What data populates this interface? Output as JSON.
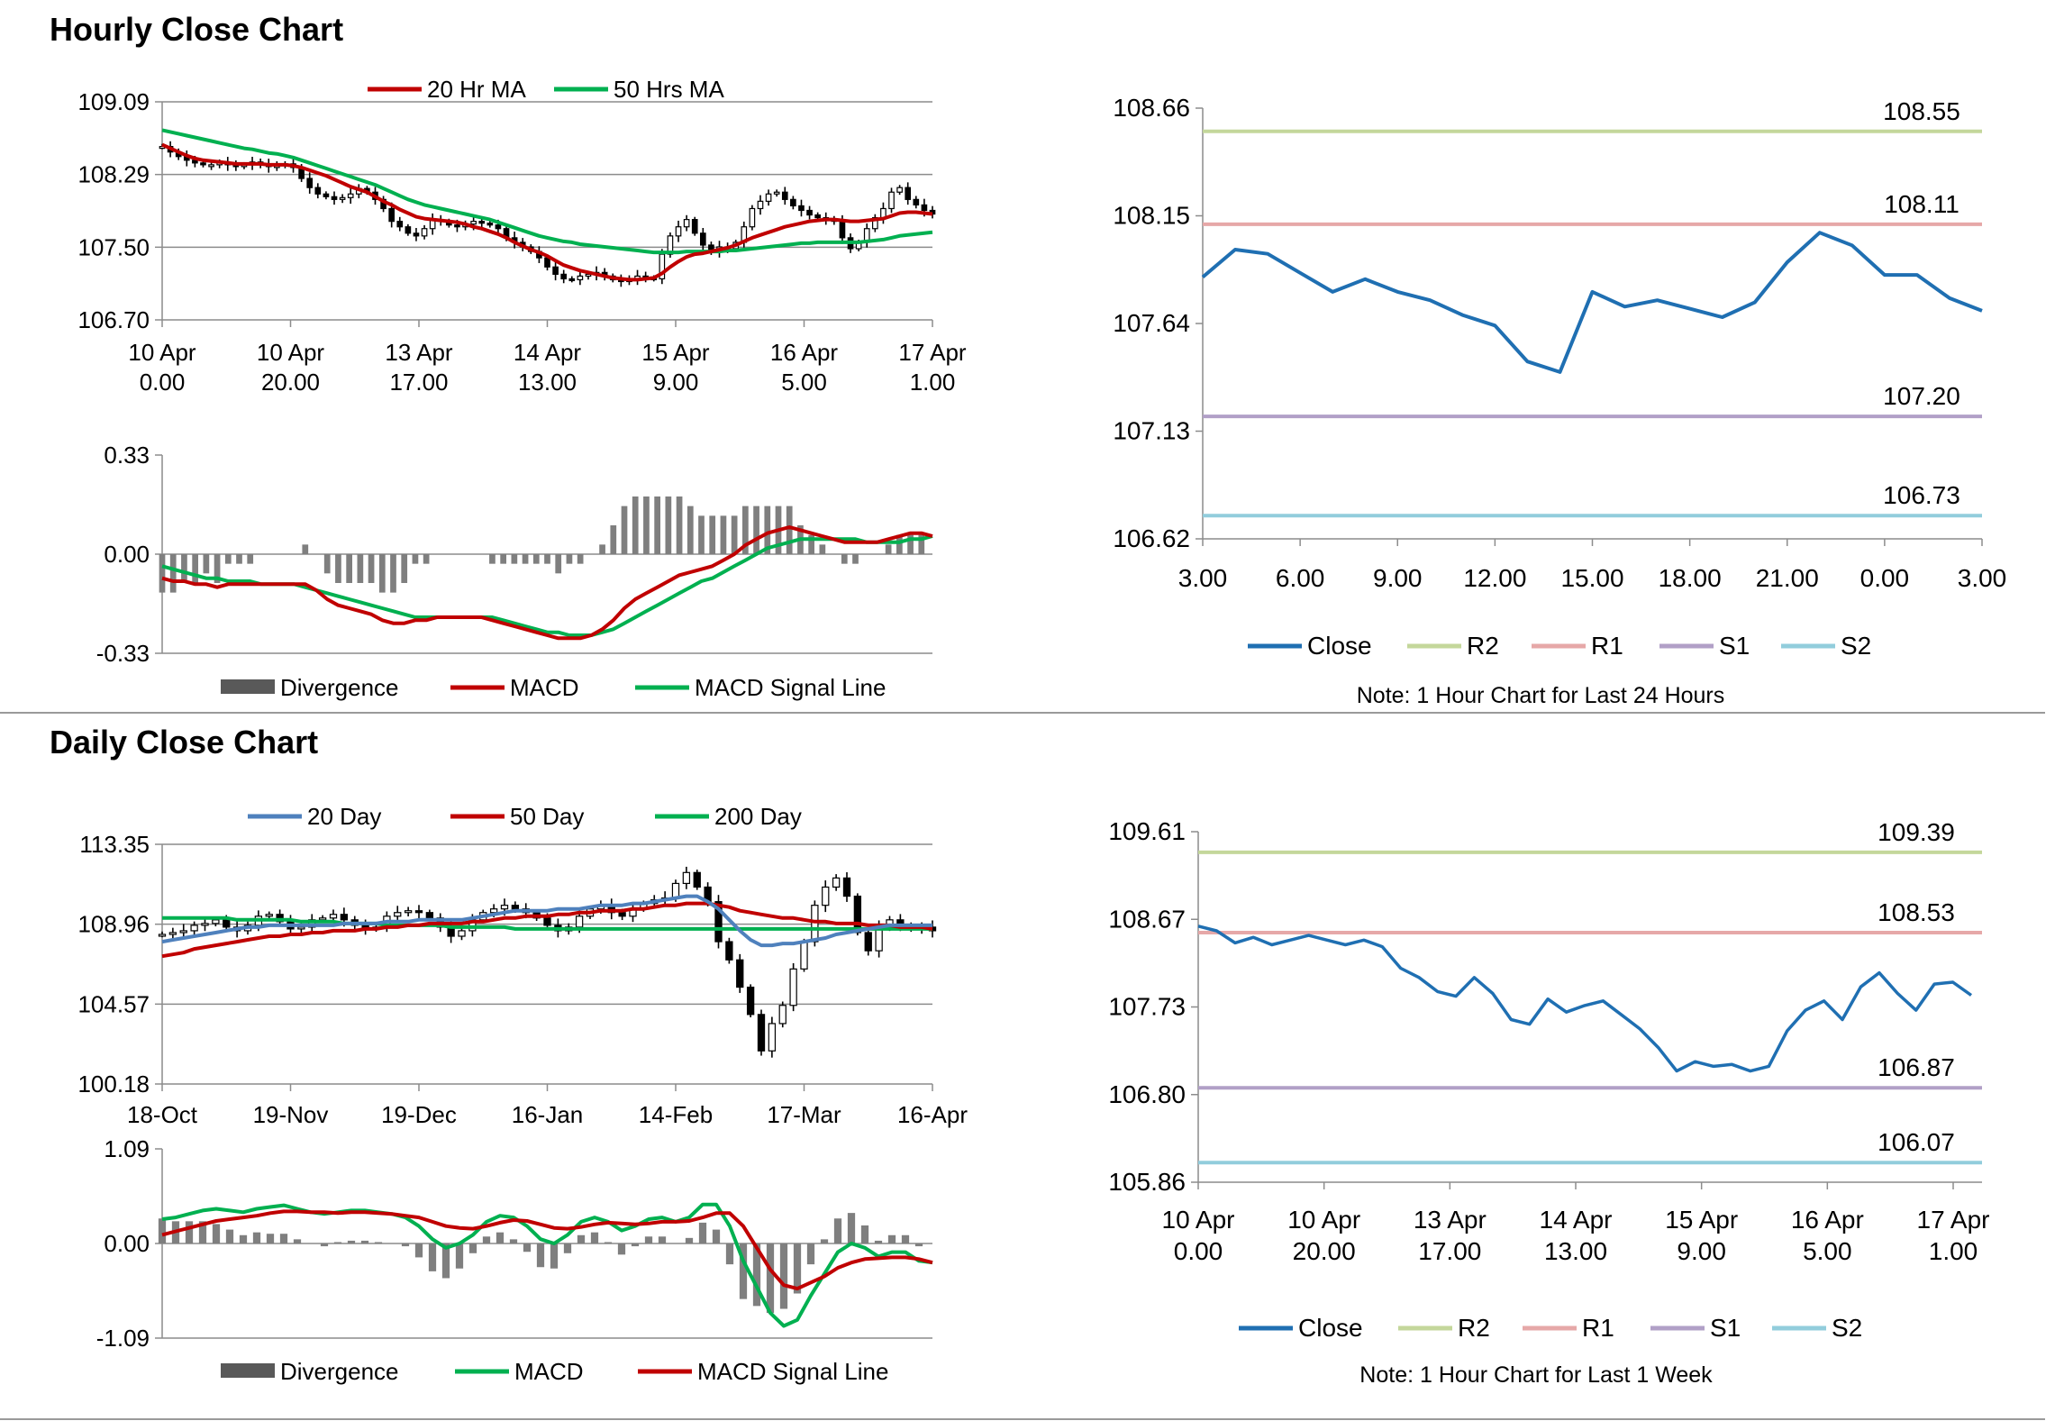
{
  "sections": {
    "hourly_title": "Hourly Close Chart",
    "daily_title": "Daily Close Chart"
  },
  "colors": {
    "ma20": "#c00000",
    "ma50": "#00b050",
    "blue": "#1f6fb2",
    "blue_ma": "#4f81bd",
    "r2": "#c4d79b",
    "r1": "#e6a8a8",
    "s1": "#b1a0c7",
    "s2": "#92cddc",
    "hist": "#7f7f7f",
    "grid": "#8c8c8c",
    "candle": "#000000"
  },
  "chart_data": [
    {
      "id": "hourly_price",
      "type": "candlestick",
      "legend": [
        "20 Hr MA",
        "50 Hrs MA"
      ],
      "y_ticks": [
        "109.09",
        "108.29",
        "107.50",
        "106.70"
      ],
      "ylim": [
        106.7,
        109.09
      ],
      "x_ticks": [
        [
          "10 Apr",
          "0.00"
        ],
        [
          "10 Apr",
          "20.00"
        ],
        [
          "13 Apr",
          "17.00"
        ],
        [
          "14 Apr",
          "13.00"
        ],
        [
          "15 Apr",
          "9.00"
        ],
        [
          "16 Apr",
          "5.00"
        ],
        [
          "17 Apr",
          "1.00"
        ]
      ],
      "close": [
        108.6,
        108.54,
        108.49,
        108.45,
        108.42,
        108.4,
        108.4,
        108.42,
        108.4,
        108.38,
        108.4,
        108.43,
        108.4,
        108.38,
        108.39,
        108.41,
        108.37,
        108.25,
        108.15,
        108.08,
        108.05,
        108.02,
        108.04,
        108.08,
        108.14,
        108.1,
        108.02,
        107.92,
        107.78,
        107.72,
        107.65,
        107.62,
        107.7,
        107.8,
        107.78,
        107.74,
        107.72,
        107.75,
        107.78,
        107.76,
        107.74,
        107.7,
        107.6,
        107.55,
        107.5,
        107.45,
        107.38,
        107.28,
        107.2,
        107.15,
        107.14,
        107.18,
        107.2,
        107.22,
        107.18,
        107.14,
        107.12,
        107.15,
        107.18,
        107.16,
        107.15,
        107.42,
        107.62,
        107.72,
        107.8,
        107.65,
        107.52,
        107.45,
        107.5,
        107.48,
        107.55,
        107.72,
        107.92,
        108.0,
        108.08,
        108.1,
        108.02,
        107.95,
        107.9,
        107.85,
        107.82,
        107.8,
        107.78,
        107.6,
        107.48,
        107.55,
        107.7,
        107.82,
        107.92,
        108.1,
        108.15,
        108.02,
        107.96,
        107.9,
        107.86
      ],
      "ma20": [
        108.62,
        108.58,
        108.54,
        108.5,
        108.47,
        108.45,
        108.44,
        108.43,
        108.42,
        108.41,
        108.41,
        108.41,
        108.41,
        108.4,
        108.4,
        108.4,
        108.39,
        108.37,
        108.34,
        108.31,
        108.28,
        108.24,
        108.2,
        108.16,
        108.13,
        108.1,
        108.05,
        108.0,
        107.96,
        107.91,
        107.87,
        107.83,
        107.81,
        107.8,
        107.79,
        107.78,
        107.77,
        107.75,
        107.72,
        107.7,
        107.67,
        107.64,
        107.6,
        107.55,
        107.51,
        107.47,
        107.44,
        107.4,
        107.35,
        107.3,
        107.27,
        107.24,
        107.22,
        107.2,
        107.18,
        107.16,
        107.15,
        107.14,
        107.14,
        107.15,
        107.16,
        107.21,
        107.28,
        107.34,
        107.39,
        107.42,
        107.43,
        107.45,
        107.47,
        107.49,
        107.52,
        107.56,
        107.6,
        107.63,
        107.66,
        107.69,
        107.72,
        107.74,
        107.76,
        107.78,
        107.79,
        107.8,
        107.8,
        107.79,
        107.78,
        107.78,
        107.79,
        107.8,
        107.81,
        107.84,
        107.87,
        107.88,
        107.88,
        107.87,
        107.86
      ],
      "ma50": [
        108.78,
        108.76,
        108.74,
        108.72,
        108.7,
        108.68,
        108.66,
        108.64,
        108.62,
        108.6,
        108.58,
        108.57,
        108.55,
        108.53,
        108.52,
        108.5,
        108.48,
        108.45,
        108.42,
        108.39,
        108.36,
        108.33,
        108.3,
        108.27,
        108.24,
        108.21,
        108.18,
        108.14,
        108.1,
        108.06,
        108.02,
        107.99,
        107.96,
        107.94,
        107.92,
        107.9,
        107.88,
        107.86,
        107.84,
        107.82,
        107.8,
        107.77,
        107.74,
        107.71,
        107.68,
        107.65,
        107.62,
        107.6,
        107.58,
        107.56,
        107.55,
        107.53,
        107.52,
        107.51,
        107.5,
        107.49,
        107.48,
        107.47,
        107.46,
        107.45,
        107.44,
        107.44,
        107.44,
        107.44,
        107.45,
        107.45,
        107.45,
        107.45,
        107.45,
        107.46,
        107.46,
        107.47,
        107.48,
        107.49,
        107.5,
        107.51,
        107.52,
        107.53,
        107.54,
        107.54,
        107.55,
        107.55,
        107.55,
        107.55,
        107.55,
        107.55,
        107.56,
        107.57,
        107.58,
        107.6,
        107.62,
        107.63,
        107.64,
        107.65,
        107.66
      ]
    },
    {
      "id": "hourly_macd",
      "type": "line+histogram",
      "legend": [
        "Divergence",
        "MACD",
        "MACD Signal Line"
      ],
      "y_ticks": [
        "0.33",
        "0.00",
        "-0.33"
      ],
      "ylim": [
        -0.33,
        0.33
      ],
      "macd": [
        -0.08,
        -0.09,
        -0.09,
        -0.1,
        -0.1,
        -0.11,
        -0.1,
        -0.1,
        -0.1,
        -0.1,
        -0.1,
        -0.1,
        -0.1,
        -0.1,
        -0.12,
        -0.15,
        -0.17,
        -0.18,
        -0.19,
        -0.2,
        -0.22,
        -0.23,
        -0.23,
        -0.22,
        -0.22,
        -0.21,
        -0.21,
        -0.21,
        -0.21,
        -0.21,
        -0.22,
        -0.23,
        -0.24,
        -0.25,
        -0.26,
        -0.27,
        -0.28,
        -0.28,
        -0.28,
        -0.27,
        -0.25,
        -0.22,
        -0.18,
        -0.15,
        -0.13,
        -0.11,
        -0.09,
        -0.07,
        -0.06,
        -0.05,
        -0.04,
        -0.02,
        0.0,
        0.03,
        0.05,
        0.07,
        0.08,
        0.09,
        0.08,
        0.07,
        0.06,
        0.05,
        0.04,
        0.04,
        0.04,
        0.04,
        0.05,
        0.06,
        0.07,
        0.07,
        0.06
      ],
      "signal": [
        -0.04,
        -0.05,
        -0.06,
        -0.07,
        -0.08,
        -0.08,
        -0.09,
        -0.09,
        -0.09,
        -0.1,
        -0.1,
        -0.1,
        -0.1,
        -0.11,
        -0.12,
        -0.13,
        -0.14,
        -0.15,
        -0.16,
        -0.17,
        -0.18,
        -0.19,
        -0.2,
        -0.21,
        -0.21,
        -0.21,
        -0.21,
        -0.21,
        -0.21,
        -0.21,
        -0.21,
        -0.22,
        -0.23,
        -0.24,
        -0.25,
        -0.26,
        -0.26,
        -0.27,
        -0.27,
        -0.27,
        -0.26,
        -0.25,
        -0.23,
        -0.21,
        -0.19,
        -0.17,
        -0.15,
        -0.13,
        -0.11,
        -0.09,
        -0.08,
        -0.06,
        -0.04,
        -0.02,
        0.0,
        0.02,
        0.03,
        0.04,
        0.05,
        0.05,
        0.05,
        0.05,
        0.05,
        0.05,
        0.04,
        0.04,
        0.04,
        0.04,
        0.05,
        0.05,
        0.06
      ]
    },
    {
      "id": "hourly_pivots",
      "type": "line",
      "legend": [
        "Close",
        "R2",
        "R1",
        "S1",
        "S2"
      ],
      "note": "Note: 1 Hour Chart for Last 24 Hours",
      "y_ticks": [
        "108.66",
        "108.15",
        "107.64",
        "107.13",
        "106.62"
      ],
      "ylim": [
        106.62,
        108.66
      ],
      "x_ticks": [
        "3.00",
        "6.00",
        "9.00",
        "12.00",
        "15.00",
        "18.00",
        "21.00",
        "0.00",
        "3.00"
      ],
      "close": [
        107.86,
        107.99,
        107.97,
        107.88,
        107.79,
        107.85,
        107.79,
        107.75,
        107.68,
        107.63,
        107.46,
        107.41,
        107.79,
        107.72,
        107.75,
        107.71,
        107.67,
        107.74,
        107.93,
        108.07,
        108.01,
        107.87,
        107.87,
        107.76,
        107.7
      ],
      "levels": [
        {
          "name": "R2",
          "value": 108.55,
          "label": "108.55"
        },
        {
          "name": "R1",
          "value": 108.11,
          "label": "108.11"
        },
        {
          "name": "S1",
          "value": 107.2,
          "label": "107.20"
        },
        {
          "name": "S2",
          "value": 106.73,
          "label": "106.73"
        }
      ]
    },
    {
      "id": "daily_price",
      "type": "candlestick",
      "legend": [
        "20 Day",
        "50 Day",
        "200 Day"
      ],
      "y_ticks": [
        "113.35",
        "108.96",
        "104.57",
        "100.18"
      ],
      "ylim": [
        100.18,
        113.35
      ],
      "x_ticks": [
        "18-Oct",
        "19-Nov",
        "19-Dec",
        "16-Jan",
        "14-Feb",
        "17-Mar",
        "16-Apr"
      ],
      "close": [
        108.4,
        108.5,
        108.6,
        108.9,
        109.0,
        109.2,
        108.8,
        108.6,
        108.9,
        109.4,
        109.5,
        109.1,
        108.7,
        108.8,
        109.2,
        109.3,
        109.5,
        109.2,
        108.9,
        108.7,
        108.8,
        109.4,
        109.6,
        109.7,
        109.6,
        109.3,
        108.8,
        108.3,
        108.6,
        109.2,
        109.6,
        109.8,
        110.0,
        109.8,
        109.6,
        109.3,
        108.9,
        108.6,
        108.8,
        109.4,
        109.8,
        110.0,
        109.6,
        109.4,
        109.8,
        110.1,
        110.3,
        110.4,
        111.2,
        111.8,
        111.0,
        110.2,
        108.0,
        107.0,
        105.5,
        104.0,
        102.0,
        103.5,
        104.5,
        106.5,
        108.0,
        110.0,
        111.0,
        111.5,
        110.5,
        108.5,
        107.5,
        108.8,
        109.2,
        108.9,
        108.7,
        108.8,
        108.6
      ],
      "ma20": [
        108.0,
        108.1,
        108.2,
        108.3,
        108.4,
        108.5,
        108.6,
        108.7,
        108.8,
        108.8,
        108.9,
        108.9,
        108.9,
        108.9,
        108.9,
        108.9,
        108.9,
        109.0,
        109.0,
        109.0,
        109.0,
        109.1,
        109.1,
        109.1,
        109.2,
        109.2,
        109.2,
        109.2,
        109.2,
        109.3,
        109.4,
        109.5,
        109.6,
        109.7,
        109.7,
        109.7,
        109.7,
        109.8,
        109.8,
        109.8,
        109.9,
        110.0,
        110.0,
        110.0,
        110.1,
        110.1,
        110.2,
        110.3,
        110.4,
        110.5,
        110.5,
        110.2,
        109.8,
        109.2,
        108.6,
        108.1,
        107.8,
        107.8,
        107.9,
        107.9,
        108.0,
        108.1,
        108.2,
        108.4,
        108.5,
        108.6,
        108.7,
        108.8,
        108.9,
        108.9,
        108.9,
        108.9,
        108.9
      ],
      "ma50": [
        107.2,
        107.3,
        107.4,
        107.6,
        107.7,
        107.8,
        107.9,
        108.0,
        108.1,
        108.2,
        108.3,
        108.3,
        108.4,
        108.4,
        108.5,
        108.5,
        108.6,
        108.6,
        108.6,
        108.7,
        108.7,
        108.8,
        108.8,
        108.9,
        108.9,
        109.0,
        109.0,
        109.0,
        109.0,
        109.1,
        109.1,
        109.2,
        109.3,
        109.3,
        109.4,
        109.4,
        109.4,
        109.5,
        109.5,
        109.6,
        109.6,
        109.7,
        109.7,
        109.7,
        109.8,
        109.8,
        109.9,
        110.0,
        110.0,
        110.1,
        110.1,
        110.1,
        110.0,
        109.9,
        109.7,
        109.6,
        109.5,
        109.4,
        109.3,
        109.3,
        109.2,
        109.1,
        109.1,
        109.0,
        109.0,
        109.0,
        108.9,
        108.9,
        108.9,
        108.8,
        108.8,
        108.8,
        108.7
      ],
      "ma200": [
        109.3,
        109.3,
        109.3,
        109.3,
        109.3,
        109.3,
        109.3,
        109.2,
        109.2,
        109.2,
        109.2,
        109.2,
        109.2,
        109.1,
        109.1,
        109.1,
        109.1,
        109.0,
        109.0,
        109.0,
        109.0,
        108.9,
        108.9,
        108.9,
        108.9,
        108.9,
        108.9,
        108.8,
        108.8,
        108.8,
        108.8,
        108.8,
        108.8,
        108.7,
        108.7,
        108.7,
        108.7,
        108.7,
        108.7,
        108.7,
        108.7,
        108.7,
        108.7,
        108.7,
        108.7,
        108.7,
        108.7,
        108.7,
        108.7,
        108.7,
        108.7,
        108.7,
        108.7,
        108.7,
        108.7,
        108.7,
        108.7,
        108.7,
        108.7,
        108.7,
        108.7,
        108.7,
        108.7,
        108.7,
        108.7,
        108.7,
        108.7,
        108.7,
        108.7,
        108.7,
        108.7,
        108.7,
        108.7
      ]
    },
    {
      "id": "daily_macd",
      "type": "line+histogram",
      "legend": [
        "Divergence",
        "MACD",
        "MACD Signal Line"
      ],
      "y_ticks": [
        "1.09",
        "0.00",
        "-1.09"
      ],
      "ylim": [
        -1.09,
        1.09
      ],
      "macd": [
        0.28,
        0.3,
        0.34,
        0.38,
        0.4,
        0.38,
        0.36,
        0.4,
        0.42,
        0.44,
        0.4,
        0.36,
        0.34,
        0.36,
        0.38,
        0.38,
        0.36,
        0.34,
        0.3,
        0.2,
        0.05,
        -0.05,
        0.0,
        0.1,
        0.25,
        0.32,
        0.3,
        0.2,
        0.05,
        0.0,
        0.1,
        0.25,
        0.3,
        0.25,
        0.15,
        0.2,
        0.28,
        0.3,
        0.25,
        0.3,
        0.45,
        0.45,
        0.2,
        -0.2,
        -0.5,
        -0.8,
        -0.95,
        -0.88,
        -0.6,
        -0.35,
        -0.1,
        0.0,
        -0.05,
        -0.15,
        -0.1,
        -0.1,
        -0.2,
        -0.22
      ],
      "signal": [
        0.1,
        0.14,
        0.18,
        0.22,
        0.26,
        0.28,
        0.3,
        0.32,
        0.35,
        0.37,
        0.37,
        0.36,
        0.36,
        0.35,
        0.36,
        0.36,
        0.35,
        0.34,
        0.32,
        0.3,
        0.25,
        0.2,
        0.18,
        0.17,
        0.2,
        0.24,
        0.27,
        0.26,
        0.22,
        0.18,
        0.17,
        0.19,
        0.22,
        0.24,
        0.23,
        0.22,
        0.23,
        0.25,
        0.25,
        0.26,
        0.3,
        0.35,
        0.35,
        0.2,
        -0.05,
        -0.3,
        -0.48,
        -0.52,
        -0.45,
        -0.38,
        -0.28,
        -0.22,
        -0.18,
        -0.17,
        -0.16,
        -0.16,
        -0.18,
        -0.22
      ]
    },
    {
      "id": "daily_pivots",
      "type": "line",
      "legend": [
        "Close",
        "R2",
        "R1",
        "S1",
        "S2"
      ],
      "note": "Note: 1 Hour Chart for Last 1 Week",
      "y_ticks": [
        "109.61",
        "108.67",
        "107.73",
        "106.80",
        "105.86"
      ],
      "ylim": [
        105.86,
        109.61
      ],
      "x_ticks": [
        [
          "10 Apr",
          "0.00"
        ],
        [
          "10 Apr",
          "20.00"
        ],
        [
          "13 Apr",
          "17.00"
        ],
        [
          "14 Apr",
          "13.00"
        ],
        [
          "15 Apr",
          "9.00"
        ],
        [
          "16 Apr",
          "5.00"
        ],
        [
          "17 Apr",
          "1.00"
        ]
      ],
      "close": [
        108.6,
        108.55,
        108.42,
        108.48,
        108.4,
        108.45,
        108.5,
        108.45,
        108.4,
        108.45,
        108.38,
        108.15,
        108.05,
        107.9,
        107.85,
        108.05,
        107.88,
        107.6,
        107.55,
        107.82,
        107.68,
        107.75,
        107.8,
        107.65,
        107.5,
        107.3,
        107.05,
        107.15,
        107.1,
        107.12,
        107.05,
        107.1,
        107.48,
        107.7,
        107.8,
        107.6,
        107.95,
        108.1,
        107.88,
        107.7,
        107.98,
        108.0,
        107.86
      ],
      "levels": [
        {
          "name": "R2",
          "value": 109.39,
          "label": "109.39"
        },
        {
          "name": "R1",
          "value": 108.53,
          "label": "108.53"
        },
        {
          "name": "S1",
          "value": 106.87,
          "label": "106.87"
        },
        {
          "name": "S2",
          "value": 106.07,
          "label": "106.07"
        }
      ]
    }
  ]
}
